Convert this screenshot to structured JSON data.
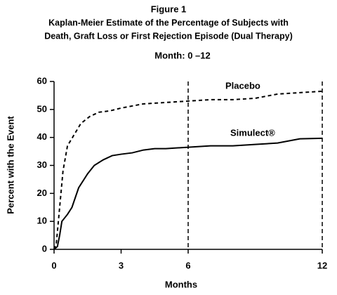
{
  "chart_data": {
    "type": "line",
    "title": "Figure 1",
    "subtitle": [
      "Kaplan-Meier Estimate of the Percentage of Subjects with",
      "Death, Graft Loss or First Rejection Episode (Dual Therapy)"
    ],
    "annotation": "Month: 0 –12",
    "x_label": "Months",
    "y_label": "Percent with the Event",
    "xlim": [
      0,
      12
    ],
    "xticks": [
      0,
      3,
      6,
      12
    ],
    "ylim": [
      0,
      60
    ],
    "yticks": [
      0,
      10,
      20,
      30,
      40,
      50,
      60
    ],
    "vlines": [
      6,
      12
    ],
    "series": [
      {
        "name": "Placebo",
        "color": "#000000",
        "dash": true,
        "x": [
          0,
          0.1,
          0.25,
          0.4,
          0.6,
          0.9,
          1.2,
          1.6,
          2,
          2.5,
          3,
          4,
          5,
          6,
          7,
          8,
          9,
          10,
          11,
          12
        ],
        "values": [
          0,
          2,
          15,
          28,
          37,
          41,
          45,
          47.5,
          49,
          49.5,
          50.5,
          52,
          52.5,
          53,
          53.5,
          53.5,
          54,
          55.5,
          56,
          56.5
        ]
      },
      {
        "name": "Simulect®",
        "color": "#000000",
        "dash": false,
        "x": [
          0,
          0.15,
          0.25,
          0.35,
          0.6,
          0.8,
          1.1,
          1.5,
          1.8,
          2.2,
          2.6,
          3,
          3.5,
          4,
          4.5,
          5,
          6,
          7,
          8,
          9,
          10,
          11,
          12
        ],
        "values": [
          0,
          1,
          5,
          10,
          12.5,
          15,
          22,
          27,
          30,
          32,
          33.5,
          34,
          34.5,
          35.5,
          36,
          36,
          36.5,
          37,
          37,
          37.5,
          38,
          39.5,
          39.7
        ]
      }
    ]
  }
}
